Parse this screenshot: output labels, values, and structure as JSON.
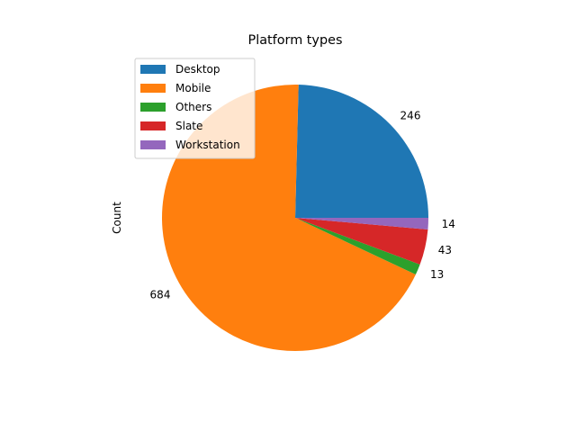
{
  "chart_data": {
    "type": "pie",
    "title": "Platform types",
    "ylabel": "Count",
    "categories": [
      "Desktop",
      "Mobile",
      "Others",
      "Slate",
      "Workstation"
    ],
    "values": [
      246,
      684,
      13,
      43,
      14
    ],
    "value_labels": [
      "246",
      "684",
      "13",
      "43",
      "14"
    ],
    "colors": [
      "#1f77b4",
      "#ff7f0e",
      "#2ca02c",
      "#d62728",
      "#9467bd"
    ],
    "start_angle_deg": 0,
    "direction": "counterclockwise",
    "legend": {
      "position": "upper-left",
      "entries": [
        "Desktop",
        "Mobile",
        "Others",
        "Slate",
        "Workstation"
      ]
    }
  }
}
